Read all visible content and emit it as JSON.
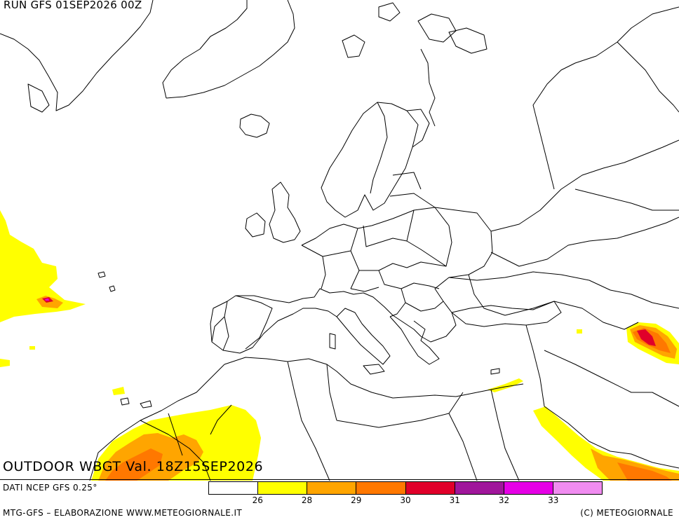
{
  "header": {
    "run_title": "RUN GFS 01SEP2026 00Z"
  },
  "map": {
    "title": "OUTDOOR WBGT Val. 18Z15SEP2026",
    "region": "Europe, North Africa and Middle East",
    "background_color": "#ffffff",
    "boundary_color": "#000000"
  },
  "legend": {
    "colors": [
      "#ffffff",
      "#ffff00",
      "#ffa500",
      "#ff7800",
      "#e0002a",
      "#a0169b",
      "#e600e6",
      "#f08cf0"
    ],
    "ticks": [
      "26",
      "28",
      "29",
      "30",
      "31",
      "32",
      "33"
    ]
  },
  "footer": {
    "data_source": "DATI NCEP GFS 0.25°",
    "credit_left": "MTG-GFS – ELABORAZIONE WWW.METEOGIORNALE.IT",
    "credit_right": "(C) METEOGIORNALE"
  }
}
